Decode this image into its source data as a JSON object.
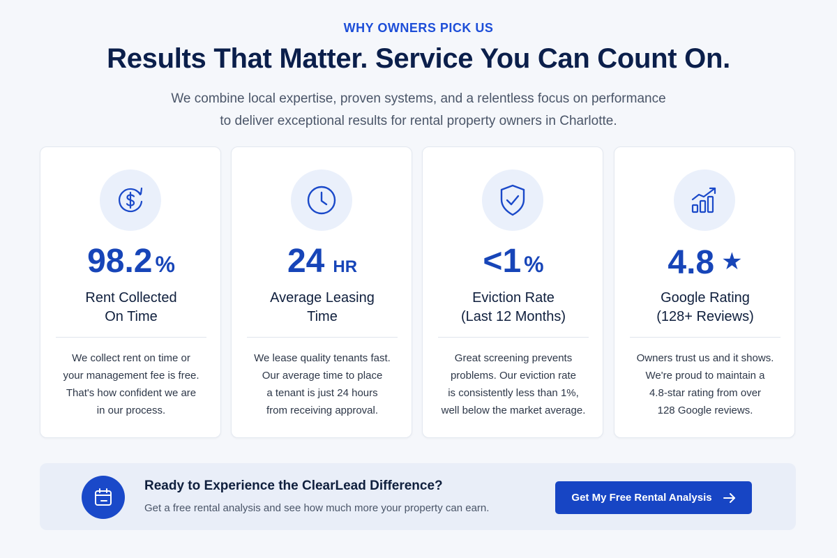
{
  "header": {
    "eyebrow": "WHY OWNERS PICK US",
    "headline": "Results That Matter. Service You Can Count On.",
    "subtitle_lines": [
      "We combine local expertise, proven systems, and a relentless focus on performance",
      "to deliver exceptional results for rental property owners in Charlotte."
    ]
  },
  "cards": [
    {
      "icon": "dollar-refresh-icon",
      "stat_value": "98.2",
      "stat_unit": "%",
      "label_lines": [
        "Rent Collected",
        "On Time"
      ],
      "desc_lines": [
        "We collect rent on time or",
        "your management fee is free.",
        "That's how confident we are",
        "in our process."
      ]
    },
    {
      "icon": "clock-icon",
      "stat_value": "24",
      "stat_unit": "HR",
      "label_lines": [
        "Average Leasing",
        "Time"
      ],
      "desc_lines": [
        "We lease quality tenants fast.",
        "Our average time to place",
        "a tenant is just 24 hours",
        "from receiving approval."
      ]
    },
    {
      "icon": "shield-check-icon",
      "stat_value": "<1",
      "stat_unit": "%",
      "label_lines": [
        "Eviction Rate",
        "(Last 12 Months)"
      ],
      "desc_lines": [
        "Great screening prevents",
        "problems. Our eviction rate",
        "is consistently less than 1%,",
        "well below the market average."
      ]
    },
    {
      "icon": "growth-chart-icon",
      "stat_value": "4.8",
      "stat_unit": "★",
      "label_lines": [
        "Google Rating",
        "(128+ Reviews)"
      ],
      "desc_lines": [
        "Owners trust us and it shows.",
        "We're proud to maintain a",
        "4.8-star rating from over",
        "128 Google reviews."
      ]
    }
  ],
  "cta": {
    "icon": "calendar-icon",
    "title": "Ready to Experience the ClearLead Difference?",
    "subtitle": "Get a free rental analysis and see how much more your property can earn.",
    "button_label": "Get My Free Rental Analysis",
    "button_icon": "arrow-right-icon"
  },
  "colors": {
    "accent": "#1745b8",
    "heading": "#0b1f4b",
    "background": "#f5f7fb",
    "icon_circle": "#eaf0fb",
    "cta_background": "#e9eef8"
  }
}
